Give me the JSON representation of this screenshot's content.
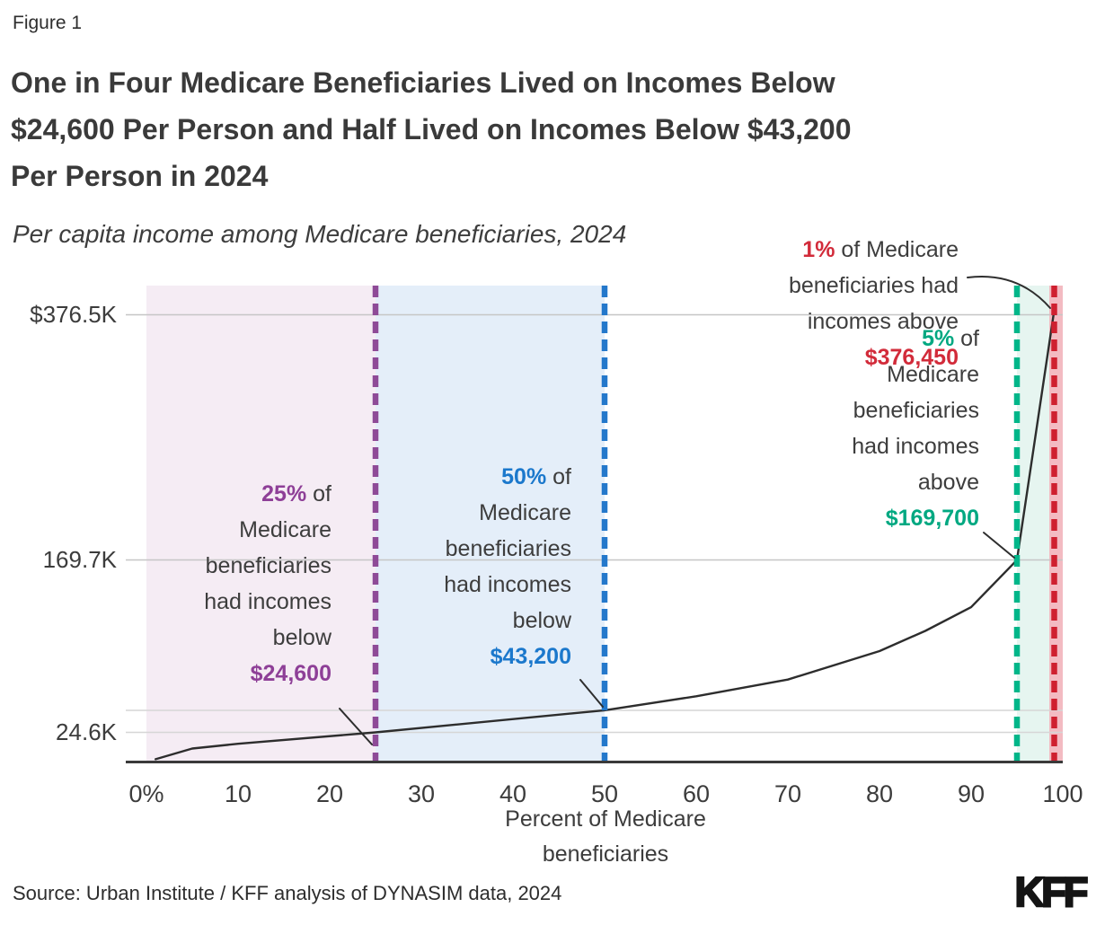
{
  "figure_label": "Figure 1",
  "title_lines": [
    "One in Four Medicare Beneficiaries Lived on Incomes Below",
    "$24,600 Per Person and Half Lived on Incomes Below $43,200",
    "Per Person in 2024"
  ],
  "subtitle": "Per capita income among Medicare beneficiaries, 2024",
  "source": "Source: Urban Institute / KFF analysis of DYNASIM data, 2024",
  "logo_text": "KFF",
  "colors": {
    "purple_text": "#8e3f97",
    "purple_line": "#8e4a97",
    "purple_region": "#f5ecf4",
    "blue_text": "#1b78cc",
    "blue_line": "#2478cb",
    "blue_region": "#e4eef9",
    "green_text": "#00a881",
    "green_line": "#00b689",
    "green_region": "#e6f5f0",
    "red_text": "#d22b3a",
    "red_line": "#cf202f",
    "red_region": "#f3bbc2",
    "gridline": "#cccccc",
    "axis": "#3a3a3a",
    "curve": "#2d2d2d",
    "dark_text": "#3d3d3d"
  },
  "chart_data": {
    "type": "line",
    "title": "Per capita income among Medicare beneficiaries, 2024",
    "xlabel": "Percent of Medicare beneficiaries",
    "ylabel": "",
    "xlim": [
      0,
      100
    ],
    "ylim_thousands": [
      0,
      400
    ],
    "grid": "horizontal",
    "legend": "none",
    "x_ticks": [
      "0%",
      "10",
      "20",
      "30",
      "40",
      "50",
      "60",
      "70",
      "80",
      "90",
      "100"
    ],
    "y_tick_labels": [
      "$376.5K",
      "169.7K",
      "24.6K"
    ],
    "y_gridline_values_thousands": [
      376.5,
      169.7,
      43.2,
      24.6
    ],
    "series": [
      {
        "name": "per-capita-income-percentile-curve",
        "points_percent_vs_income_thousands": [
          [
            1,
            2
          ],
          [
            5,
            11
          ],
          [
            10,
            15
          ],
          [
            25,
            24.6
          ],
          [
            50,
            43.2
          ],
          [
            60,
            55
          ],
          [
            70,
            69
          ],
          [
            80,
            93
          ],
          [
            85,
            110
          ],
          [
            90,
            130
          ],
          [
            95,
            169.7
          ],
          [
            99,
            376.45
          ]
        ]
      }
    ],
    "markers": [
      {
        "percent": 25,
        "amount": "$24,600",
        "note": "25% of Medicare beneficiaries had incomes below $24,600"
      },
      {
        "percent": 50,
        "amount": "$43,200",
        "note": "50% of Medicare beneficiaries had incomes below $43,200"
      },
      {
        "percent": 95,
        "amount": "$169,700",
        "note": "5% of Medicare beneficiaries had incomes above $169,700"
      },
      {
        "percent": 99,
        "amount": "$376,450",
        "note": "1% of Medicare beneficiaries had incomes above $376,450"
      }
    ]
  },
  "axis_titles": {
    "x_line1": "Percent of Medicare",
    "x_line2": "beneficiaries"
  },
  "annotations": {
    "p25": {
      "highlight": "25%",
      "after": " of",
      "lines": [
        "Medicare",
        "beneficiaries",
        "had incomes",
        "below"
      ],
      "amount": "$24,600"
    },
    "p50": {
      "highlight": "50%",
      "after": " of",
      "lines": [
        "Medicare",
        "beneficiaries",
        "had incomes",
        "below"
      ],
      "amount": "$43,200"
    },
    "p5": {
      "highlight": "5%",
      "after": " of",
      "lines": [
        "Medicare",
        "beneficiaries",
        "had incomes",
        "above"
      ],
      "amount": "$169,700"
    },
    "p1": {
      "highlight": "1%",
      "after": " of Medicare",
      "lines": [
        "beneficiaries had",
        "incomes above"
      ],
      "amount": "$376,450"
    }
  }
}
